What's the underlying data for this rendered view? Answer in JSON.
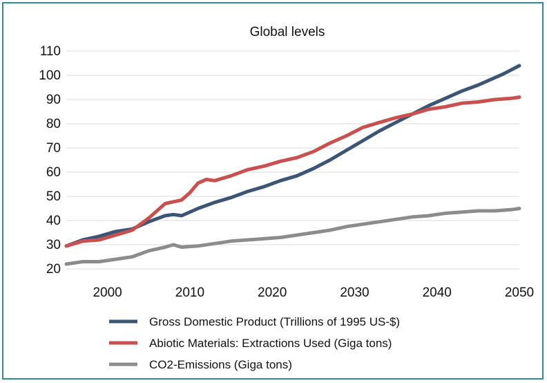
{
  "chart_data": {
    "type": "line",
    "title": "Global levels",
    "xlabel": "",
    "ylabel": "",
    "xlim": [
      1995,
      2050
    ],
    "ylim": [
      20,
      110
    ],
    "xticks": [
      2000,
      2010,
      2020,
      2030,
      2040,
      2050
    ],
    "yticks": [
      20,
      30,
      40,
      50,
      60,
      70,
      80,
      90,
      100,
      110
    ],
    "grid": "horizontal",
    "legend_position": "bottom",
    "series": [
      {
        "name": "Gross Domestic Product (Trillions of 1995 US-$)",
        "color": "#3d5575",
        "x": [
          1995,
          1997,
          1999,
          2001,
          2003,
          2005,
          2007,
          2008,
          2009,
          2011,
          2013,
          2015,
          2017,
          2019,
          2021,
          2023,
          2025,
          2027,
          2029,
          2031,
          2033,
          2035,
          2037,
          2039,
          2041,
          2043,
          2045,
          2047,
          2048,
          2050
        ],
        "y": [
          29.5,
          32,
          33.5,
          35.5,
          36.5,
          39.5,
          42,
          42.5,
          42,
          45,
          47.5,
          49.5,
          52,
          54,
          56.5,
          58.5,
          61.5,
          65,
          69,
          73,
          77,
          80.5,
          84,
          87.5,
          90.5,
          93.5,
          96,
          99,
          100.5,
          104
        ]
      },
      {
        "name": "Abiotic Materials: Extractions Used (Giga tons)",
        "color": "#c9504e",
        "x": [
          1995,
          1997,
          1999,
          2001,
          2003,
          2005,
          2007,
          2009,
          2010,
          2011,
          2012,
          2013,
          2015,
          2017,
          2019,
          2021,
          2023,
          2025,
          2027,
          2029,
          2031,
          2033,
          2035,
          2037,
          2039,
          2041,
          2043,
          2045,
          2047,
          2049,
          2050
        ],
        "y": [
          29.5,
          31.5,
          32,
          34,
          36,
          41,
          47,
          48.5,
          51.5,
          55.5,
          57,
          56.5,
          58.5,
          61,
          62.5,
          64.5,
          66,
          68.5,
          72,
          75,
          78.5,
          80.5,
          82.5,
          84,
          86,
          87,
          88.5,
          89,
          90,
          90.5,
          91
        ]
      },
      {
        "name": "CO2-Emissions (Giga tons)",
        "color": "#8c8c8c",
        "x": [
          1995,
          1997,
          1999,
          2001,
          2003,
          2005,
          2007,
          2008,
          2009,
          2011,
          2013,
          2015,
          2017,
          2019,
          2021,
          2023,
          2025,
          2027,
          2029,
          2031,
          2033,
          2035,
          2037,
          2039,
          2041,
          2043,
          2045,
          2047,
          2049,
          2050
        ],
        "y": [
          22,
          23,
          23,
          24,
          25,
          27.5,
          29,
          30,
          29,
          29.5,
          30.5,
          31.5,
          32,
          32.5,
          33,
          34,
          35,
          36,
          37.5,
          38.5,
          39.5,
          40.5,
          41.5,
          42,
          43,
          43.5,
          44,
          44,
          44.5,
          45
        ]
      }
    ]
  }
}
